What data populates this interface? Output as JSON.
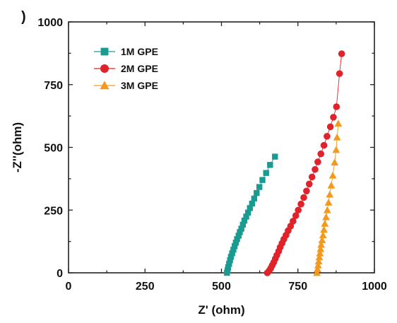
{
  "panel_label": ")",
  "chart_data": {
    "type": "scatter",
    "xlabel": "Z' (ohm)",
    "ylabel": "-Z''(ohm)",
    "xlim": [
      0,
      1000
    ],
    "ylim": [
      0,
      1000
    ],
    "xticks": [
      "0",
      "250",
      "500",
      "750",
      "1000"
    ],
    "yticks": [
      "0",
      "250",
      "500",
      "750",
      "1000"
    ],
    "grid": false,
    "legend_position": "top-left",
    "series": [
      {
        "name": "1M GPE",
        "color": "#1a9b92",
        "marker": "square",
        "points": [
          [
            518,
            0
          ],
          [
            520,
            10
          ],
          [
            522,
            22
          ],
          [
            525,
            36
          ],
          [
            528,
            50
          ],
          [
            531,
            64
          ],
          [
            535,
            78
          ],
          [
            539,
            92
          ],
          [
            543,
            106
          ],
          [
            547,
            120
          ],
          [
            551,
            134
          ],
          [
            556,
            148
          ],
          [
            560,
            162
          ],
          [
            565,
            176
          ],
          [
            570,
            192
          ],
          [
            575,
            208
          ],
          [
            581,
            224
          ],
          [
            587,
            240
          ],
          [
            593,
            258
          ],
          [
            600,
            276
          ],
          [
            607,
            296
          ],
          [
            615,
            318
          ],
          [
            624,
            342
          ],
          [
            634,
            370
          ],
          [
            646,
            398
          ],
          [
            659,
            430
          ],
          [
            675,
            463
          ]
        ]
      },
      {
        "name": "2M GPE",
        "color": "#e0222a",
        "marker": "circle",
        "points": [
          [
            650,
            0
          ],
          [
            656,
            8
          ],
          [
            661,
            18
          ],
          [
            666,
            30
          ],
          [
            671,
            42
          ],
          [
            676,
            56
          ],
          [
            681,
            70
          ],
          [
            687,
            86
          ],
          [
            692,
            102
          ],
          [
            698,
            118
          ],
          [
            704,
            134
          ],
          [
            711,
            150
          ],
          [
            718,
            168
          ],
          [
            726,
            186
          ],
          [
            734,
            206
          ],
          [
            743,
            228
          ],
          [
            751,
            250
          ],
          [
            760,
            274
          ],
          [
            769,
            300
          ],
          [
            778,
            326
          ],
          [
            787,
            354
          ],
          [
            796,
            382
          ],
          [
            806,
            412
          ],
          [
            815,
            442
          ],
          [
            825,
            474
          ],
          [
            835,
            508
          ],
          [
            845,
            544
          ],
          [
            856,
            582
          ],
          [
            866,
            620
          ],
          [
            876,
            662
          ],
          [
            886,
            794
          ],
          [
            893,
            873
          ]
        ]
      },
      {
        "name": "3M GPE",
        "color": "#f39a1e",
        "marker": "triangle",
        "points": [
          [
            812,
            0
          ],
          [
            814,
            15
          ],
          [
            816,
            30
          ],
          [
            818,
            46
          ],
          [
            820,
            62
          ],
          [
            822,
            78
          ],
          [
            824,
            95
          ],
          [
            826,
            112
          ],
          [
            829,
            130
          ],
          [
            832,
            150
          ],
          [
            835,
            172
          ],
          [
            838,
            196
          ],
          [
            842,
            222
          ],
          [
            846,
            250
          ],
          [
            850,
            280
          ],
          [
            854,
            312
          ],
          [
            859,
            348
          ],
          [
            864,
            388
          ],
          [
            870,
            440
          ],
          [
            875,
            490
          ],
          [
            878,
            540
          ],
          [
            882,
            595
          ]
        ]
      }
    ]
  }
}
